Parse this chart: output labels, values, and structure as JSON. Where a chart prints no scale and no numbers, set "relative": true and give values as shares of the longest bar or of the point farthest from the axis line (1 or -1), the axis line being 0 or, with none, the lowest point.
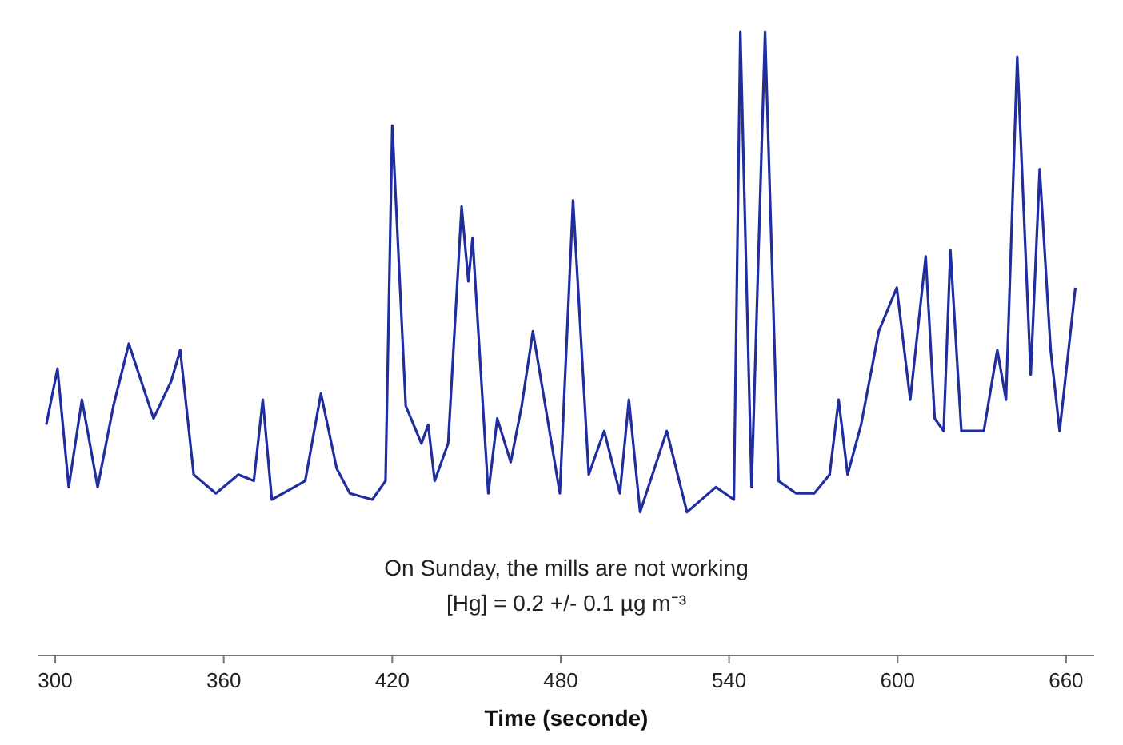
{
  "chart_data": {
    "type": "line",
    "xlabel": "Time (seconde)",
    "relative": true,
    "annotations": [
      "On Sunday, the mills are not working",
      "[Hg] = 0.2 +/- 0.1 µg m⁻³"
    ],
    "xlim": [
      294,
      670
    ],
    "xticks": [
      300,
      360,
      420,
      480,
      540,
      600,
      660
    ],
    "x": [
      296.8,
      300.8,
      304.8,
      309.5,
      315.1,
      320.7,
      326.2,
      335.0,
      341.3,
      344.5,
      349.3,
      357.2,
      365.2,
      370.7,
      373.9,
      377.1,
      385.1,
      389.0,
      394.6,
      400.2,
      404.9,
      412.9,
      417.6,
      420.0,
      424.8,
      430.4,
      432.8,
      435.1,
      439.9,
      444.7,
      447.1,
      448.6,
      454.2,
      457.4,
      462.2,
      466.1,
      470.1,
      479.7,
      484.4,
      490.0,
      495.5,
      501.1,
      504.3,
      508.3,
      517.8,
      525.0,
      535.3,
      541.7,
      544.0,
      548.0,
      552.8,
      557.6,
      563.9,
      570.3,
      575.8,
      579.0,
      582.2,
      587.0,
      593.3,
      599.7,
      604.5,
      610.0,
      613.2,
      616.4,
      618.8,
      622.7,
      630.7,
      635.5,
      638.6,
      642.6,
      647.4,
      650.6,
      654.5,
      657.7,
      663.3
    ],
    "series": [
      {
        "color": "#1f2d9e",
        "values": [
          0.37,
          0.46,
          0.27,
          0.41,
          0.27,
          0.4,
          0.5,
          0.38,
          0.44,
          0.49,
          0.29,
          0.26,
          0.29,
          0.28,
          0.41,
          0.25,
          0.27,
          0.28,
          0.42,
          0.3,
          0.26,
          0.25,
          0.28,
          0.85,
          0.4,
          0.34,
          0.37,
          0.28,
          0.34,
          0.72,
          0.6,
          0.67,
          0.26,
          0.38,
          0.31,
          0.4,
          0.52,
          0.26,
          0.73,
          0.29,
          0.36,
          0.26,
          0.41,
          0.23,
          0.36,
          0.23,
          0.27,
          0.25,
          1,
          0.27,
          1,
          0.28,
          0.26,
          0.26,
          0.29,
          0.41,
          0.29,
          0.37,
          0.52,
          0.59,
          0.41,
          0.64,
          0.38,
          0.36,
          0.65,
          0.36,
          0.36,
          0.49,
          0.41,
          0.96,
          0.45,
          0.78,
          0.49,
          0.36,
          0.59
        ]
      }
    ]
  }
}
